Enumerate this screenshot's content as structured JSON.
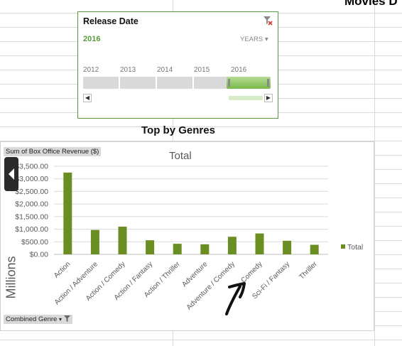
{
  "sheet_title": "Movies D",
  "timeline": {
    "title": "Release Date",
    "selection": "2016",
    "level": "YEARS",
    "years": [
      "2012",
      "2013",
      "2014",
      "2015",
      "2016"
    ],
    "selected_year": "2016"
  },
  "chart_heading": "Top by Genres",
  "pivot": {
    "value_button": "Sum of Box Office Revenue ($)",
    "axis_button": "Combined Genre",
    "unit_label": "Millions"
  },
  "chart_data": {
    "type": "bar",
    "title": "Total",
    "categories": [
      "Action",
      "Action / Adventure",
      "Action / Comedy",
      "Action / Fantasy",
      "Action / Thriller",
      "Adventure",
      "Adventure / Comedy",
      "Comedy",
      "Sci-Fi / Fantasy",
      "Thriller"
    ],
    "series": [
      {
        "name": "Total",
        "values": [
          3250,
          970,
          1100,
          560,
          420,
          400,
          700,
          830,
          540,
          380
        ]
      }
    ],
    "ylim": [
      0,
      3500
    ],
    "yticks": [
      "$0.00",
      "$500.00",
      "$1,000.00",
      "$1,500.00",
      "$2,000.00",
      "$2,500.00",
      "$3,000.00",
      "$3,500.00"
    ],
    "ylabel": "Millions",
    "legend": "right",
    "grid": true,
    "color": "#6b8e23"
  }
}
